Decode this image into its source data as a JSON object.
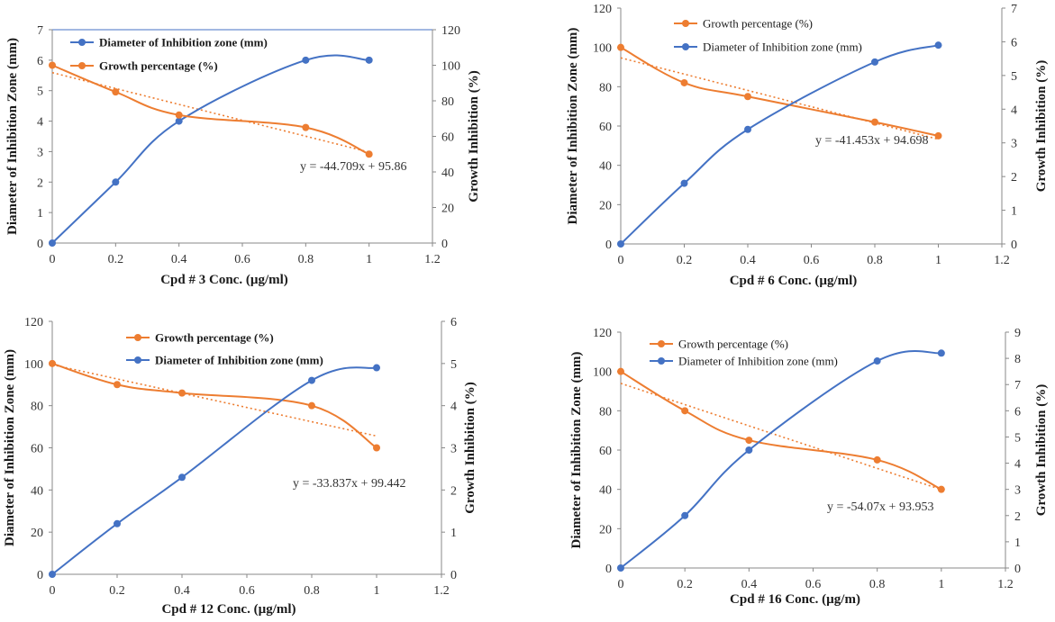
{
  "colors": {
    "blue": "#4472C4",
    "orange": "#ED7D31",
    "axis": "#888888",
    "frame": "#4472C4"
  },
  "chart_data": [
    {
      "type": "line",
      "x": [
        0,
        0.2,
        0.4,
        0.8,
        1
      ],
      "xlabel": "Cpd # 3 Conc. (µg/ml)",
      "ylabel_left": "Diameter of Inhibition Zone (mm)",
      "ylabel_right": "Growth Inhibition (%)",
      "xlim": [
        0,
        1.2
      ],
      "xticks": [
        "0",
        "0.2",
        "0.4",
        "0.6",
        "0.8",
        "1",
        "1.2"
      ],
      "ylim_left": [
        0,
        7
      ],
      "yticks_left": [
        "0",
        "1",
        "2",
        "3",
        "4",
        "5",
        "6",
        "7"
      ],
      "ylim_right": [
        0,
        120
      ],
      "yticks_right": [
        "0",
        "20",
        "40",
        "60",
        "80",
        "100",
        "120"
      ],
      "series": [
        {
          "name": "Diameter of Inhibition zone (mm)",
          "axis": "left",
          "color": "#4472C4",
          "values": [
            0,
            2,
            4,
            6,
            6
          ]
        },
        {
          "name": "Growth percentage (%)",
          "axis": "right",
          "color": "#ED7D31",
          "values": [
            100,
            85,
            72,
            65,
            50
          ]
        }
      ],
      "trendline": {
        "axis": "right",
        "slope": -44.709,
        "intercept": 95.86,
        "label": "y = -44.709x + 95.86"
      },
      "legend_order": [
        0,
        1
      ],
      "legend_bold": true
    },
    {
      "type": "line",
      "x": [
        0,
        0.2,
        0.4,
        0.8,
        1
      ],
      "xlabel": "Cpd # 6 Conc. (µg/ml)",
      "ylabel_left": "Diameter of Inhibition Zone (mm)",
      "ylabel_right": "Growth Inhibition (%)",
      "xlim": [
        0,
        1.2
      ],
      "xticks": [
        "0",
        "0.2",
        "0.4",
        "0.6",
        "0.8",
        "1",
        "1.2"
      ],
      "ylim_left": [
        0,
        120
      ],
      "yticks_left": [
        "0",
        "20",
        "40",
        "60",
        "80",
        "100",
        "120"
      ],
      "ylim_right": [
        0,
        7
      ],
      "yticks_right": [
        "0",
        "1",
        "2",
        "3",
        "4",
        "5",
        "6",
        "7"
      ],
      "series": [
        {
          "name": "Growth percentage (%)",
          "axis": "left",
          "color": "#ED7D31",
          "values": [
            100,
            82,
            75,
            62,
            55
          ]
        },
        {
          "name": "Diameter of Inhibition zone (mm)",
          "axis": "right",
          "color": "#4472C4",
          "values": [
            0,
            1.8,
            3.4,
            5.4,
            5.9
          ]
        }
      ],
      "trendline": {
        "axis": "left",
        "slope": -41.453,
        "intercept": 94.698,
        "label": "y = -41.453x + 94.698"
      },
      "legend_order": [
        0,
        1
      ],
      "legend_bold": false
    },
    {
      "type": "line",
      "x": [
        0,
        0.2,
        0.4,
        0.8,
        1
      ],
      "xlabel": "Cpd # 12 Conc. (µg/ml)",
      "ylabel_left": "Diameter of Inhibition Zone (mm)",
      "ylabel_right": "Growth Inhibition (%)",
      "xlim": [
        0,
        1.2
      ],
      "xticks": [
        "0",
        "0.2",
        "0.4",
        "0.6",
        "0.8",
        "1",
        "1.2"
      ],
      "ylim_left": [
        0,
        120
      ],
      "yticks_left": [
        "0",
        "20",
        "40",
        "60",
        "80",
        "100",
        "120"
      ],
      "ylim_right": [
        0,
        6
      ],
      "yticks_right": [
        "0",
        "1",
        "2",
        "3",
        "4",
        "5",
        "6"
      ],
      "series": [
        {
          "name": "Growth percentage (%)",
          "axis": "left",
          "color": "#ED7D31",
          "values": [
            100,
            90,
            86,
            80,
            60
          ]
        },
        {
          "name": "Diameter of Inhibition zone (mm)",
          "axis": "right",
          "color": "#4472C4",
          "values": [
            0,
            1.2,
            2.3,
            4.6,
            4.9
          ]
        }
      ],
      "trendline": {
        "axis": "left",
        "slope": -33.837,
        "intercept": 99.442,
        "label": "y = -33.837x + 99.442"
      },
      "legend_order": [
        0,
        1
      ],
      "legend_bold": true
    },
    {
      "type": "line",
      "x": [
        0,
        0.2,
        0.4,
        0.8,
        1
      ],
      "xlabel": "Cpd # 16 Conc. (µg/m)",
      "ylabel_left": "Diameter of Inhibition Zone (mm)",
      "ylabel_right": "Growth Inhibition (%)",
      "xlim": [
        0,
        1.2
      ],
      "xticks": [
        "0",
        "0.2",
        "0.4",
        "0.6",
        "0.8",
        "1",
        "1.2"
      ],
      "ylim_left": [
        0,
        120
      ],
      "yticks_left": [
        "0",
        "20",
        "40",
        "60",
        "80",
        "100",
        "120"
      ],
      "ylim_right": [
        0,
        9
      ],
      "yticks_right": [
        "0",
        "1",
        "2",
        "3",
        "4",
        "5",
        "6",
        "7",
        "8",
        "9"
      ],
      "series": [
        {
          "name": "Growth percentage (%)",
          "axis": "left",
          "color": "#ED7D31",
          "values": [
            100,
            80,
            65,
            55,
            40
          ]
        },
        {
          "name": "Diameter of Inhibition zone (mm)",
          "axis": "right",
          "color": "#4472C4",
          "values": [
            0,
            2,
            4.5,
            7.9,
            8.2
          ]
        }
      ],
      "trendline": {
        "axis": "left",
        "slope": -54.07,
        "intercept": 93.953,
        "label": "y = -54.07x + 93.953"
      },
      "legend_order": [
        0,
        1
      ],
      "legend_bold": false
    }
  ]
}
